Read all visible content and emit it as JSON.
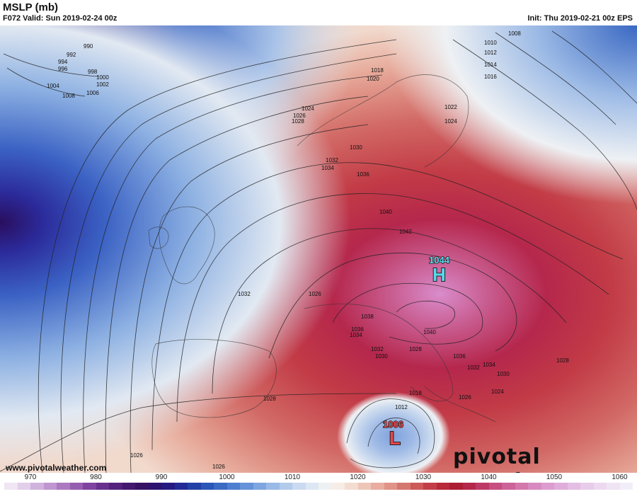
{
  "header": {
    "title": "MSLP (mb)",
    "valid": "F072 Valid: Sun 2019-02-24 00z",
    "init": "Init: Thu 2019-02-21 00z EPS"
  },
  "centers": {
    "high": {
      "value": "1044",
      "letter": "H",
      "color": "#5ad8ee"
    },
    "low": {
      "value": "1006",
      "letter": "L",
      "color": "#e8454a"
    }
  },
  "isobar_labels": [
    "990",
    "992",
    "994",
    "996",
    "998",
    "1000",
    "1002",
    "1004",
    "1006",
    "1008",
    "1008",
    "1010",
    "1012",
    "1014",
    "1016",
    "1018",
    "1020",
    "1022",
    "1024",
    "1024",
    "1026",
    "1028",
    "1030",
    "1032",
    "1034",
    "1036",
    "1040",
    "1042",
    "1038",
    "1036",
    "1034",
    "1032",
    "1030",
    "1028",
    "1040",
    "1036",
    "1034",
    "1032",
    "1030",
    "1028",
    "1026",
    "1024",
    "1032",
    "1028",
    "1026",
    "1018",
    "1012",
    "1026",
    "1026"
  ],
  "colorbar": {
    "tick_labels": [
      "970",
      "980",
      "990",
      "1000",
      "1010",
      "1020",
      "1030",
      "1040",
      "1050",
      "1060"
    ],
    "min": 966,
    "max": 1062,
    "step": 2,
    "colors": [
      "#efe5f3",
      "#e2cfea",
      "#d0b3dd",
      "#bf96cf",
      "#ab79c0",
      "#965eb0",
      "#7f449f",
      "#69318e",
      "#54227e",
      "#43186f",
      "#361264",
      "#2c1370",
      "#261a82",
      "#232a96",
      "#2340a8",
      "#2a56b8",
      "#3a6ac4",
      "#4e7ecf",
      "#6592d8",
      "#7fa6e0",
      "#99b9e6",
      "#b3cbeb",
      "#cadaf0",
      "#dde7f3",
      "#eef1f4",
      "#f6ede6",
      "#f3ddd1",
      "#eec6b8",
      "#e8ad9f",
      "#e09387",
      "#d6776f",
      "#cc5a59",
      "#c23f47",
      "#b72a3a",
      "#ac1c32",
      "#b4274a",
      "#be3a66",
      "#c64f80",
      "#cd6398",
      "#d377ad",
      "#d88ac0",
      "#dc9ccf",
      "#e0addb",
      "#e4bde4",
      "#e8cceb",
      "#ecd9f0",
      "#efe4f4",
      "#f2eef7"
    ]
  },
  "footer": {
    "website": "www.pivotalweather.com",
    "brand": "pivotal weather"
  }
}
